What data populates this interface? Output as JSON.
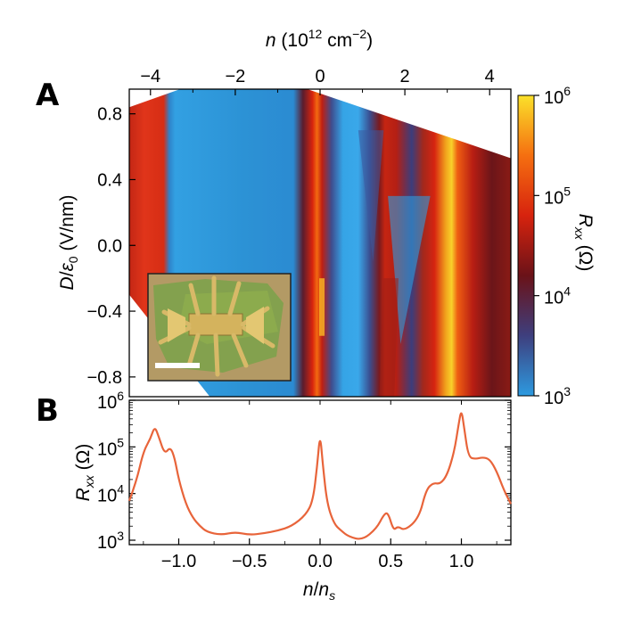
{
  "chart_data": [
    {
      "panel": "A",
      "type": "heatmap",
      "xlabel_top": "n (10^12 cm^-2)",
      "ylabel": "D/ε0 (V/nm)",
      "colorbar_label": "Rxx (Ω)",
      "xlim": [
        -4.5,
        4.5
      ],
      "ylim": [
        -0.92,
        0.95
      ],
      "xticks": [
        -4,
        -2,
        0,
        2,
        4
      ],
      "xtick_labels": [
        "−4",
        "−2",
        "0",
        "2",
        "4"
      ],
      "yticks": [
        0.8,
        0.4,
        0.0,
        -0.4,
        -0.8
      ],
      "ytick_labels": [
        "0.8",
        "0.4",
        "0.0",
        "−0.4",
        "−0.8"
      ],
      "colorbar_scale": "log",
      "colorbar_range": [
        1000,
        1000000
      ],
      "colorbar_tick_labels": [
        "10^6",
        "10^5",
        "10^4",
        "10^3"
      ],
      "colormap": [
        "#2d9ae0",
        "#3e3f7e",
        "#6a1218",
        "#d7230e",
        "#f56f10",
        "#fbe12a"
      ],
      "data_region": {
        "top_edge": [
          [
            -4.5,
            0.84
          ],
          [
            -3.3,
            0.95
          ],
          [
            -0.3,
            0.95
          ],
          [
            4.5,
            0.53
          ]
        ],
        "bottom_edge": [
          [
            -4.5,
            -0.3
          ],
          [
            -2.6,
            -0.92
          ],
          [
            4.5,
            -0.92
          ]
        ]
      },
      "inset": {
        "description": "optical micrograph of device",
        "scale_bar": true
      }
    },
    {
      "panel": "B",
      "type": "line",
      "xlabel": "n/ns",
      "ylabel": "Rxx (Ω)",
      "xlim": [
        -1.35,
        1.35
      ],
      "ylim_log": [
        1000,
        1000000
      ],
      "yscale": "log",
      "xticks": [
        -1.0,
        -0.5,
        0.0,
        0.5,
        1.0
      ],
      "xtick_labels": [
        "−1.0",
        "−0.5",
        "0.0",
        "0.5",
        "1.0"
      ],
      "ytick_labels": [
        "10^6",
        "10^5",
        "10^4",
        "10^3"
      ],
      "line_color": "#e8643a",
      "x": [
        -1.35,
        -1.3,
        -1.25,
        -1.2,
        -1.17,
        -1.14,
        -1.1,
        -1.06,
        -1.03,
        -1.0,
        -0.95,
        -0.9,
        -0.85,
        -0.8,
        -0.7,
        -0.6,
        -0.5,
        -0.4,
        -0.3,
        -0.2,
        -0.1,
        -0.05,
        -0.02,
        0.0,
        0.02,
        0.05,
        0.1,
        0.15,
        0.2,
        0.3,
        0.4,
        0.45,
        0.48,
        0.52,
        0.55,
        0.6,
        0.7,
        0.75,
        0.8,
        0.85,
        0.9,
        0.95,
        0.98,
        1.0,
        1.02,
        1.05,
        1.1,
        1.15,
        1.2,
        1.25,
        1.3,
        1.35
      ],
      "y": [
        7000,
        18000,
        80000,
        150000,
        280000,
        160000,
        70000,
        100000,
        60000,
        20000,
        6000,
        3000,
        2000,
        1500,
        1300,
        1500,
        1300,
        1400,
        1600,
        2000,
        3500,
        7000,
        40000,
        200000,
        40000,
        6000,
        2200,
        1600,
        1200,
        1000,
        1800,
        3500,
        4000,
        1600,
        2000,
        1600,
        3000,
        12000,
        17000,
        16000,
        25000,
        80000,
        300000,
        650000,
        250000,
        60000,
        55000,
        60000,
        55000,
        30000,
        12000,
        6000
      ]
    }
  ]
}
